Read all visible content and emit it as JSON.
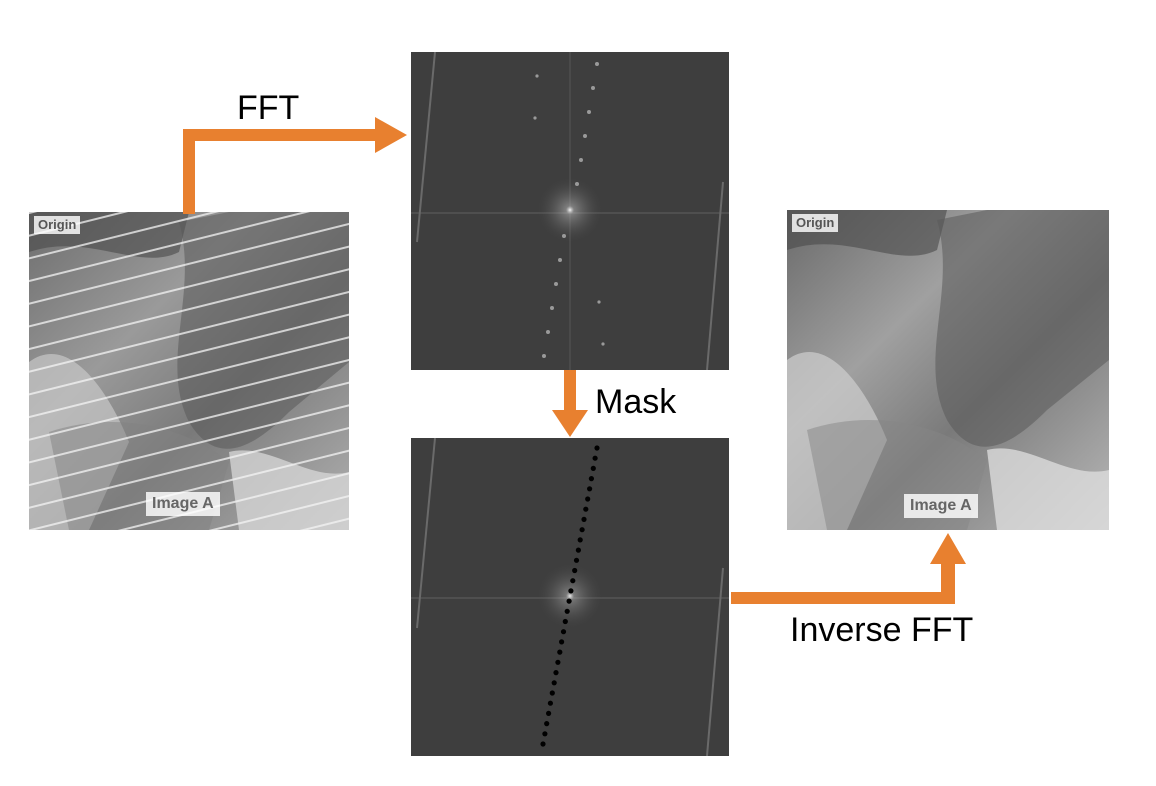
{
  "steps": {
    "fft_label": "FFT",
    "mask_label": "Mask",
    "inverse_fft_label": "Inverse FFT"
  },
  "images": {
    "origin_tag": "Origin",
    "origin_title": "Image A",
    "result_tag": "Origin",
    "result_title": "Image A",
    "origin_description": "Striped satellite image",
    "spectrum_description": "FFT magnitude spectrum",
    "masked_spectrum_description": "Masked FFT spectrum",
    "result_description": "Destriped satellite image"
  },
  "colors": {
    "arrow": "#E8802F",
    "mask_dots": "#000000",
    "spectrum_bg": "#3d3d3d"
  }
}
